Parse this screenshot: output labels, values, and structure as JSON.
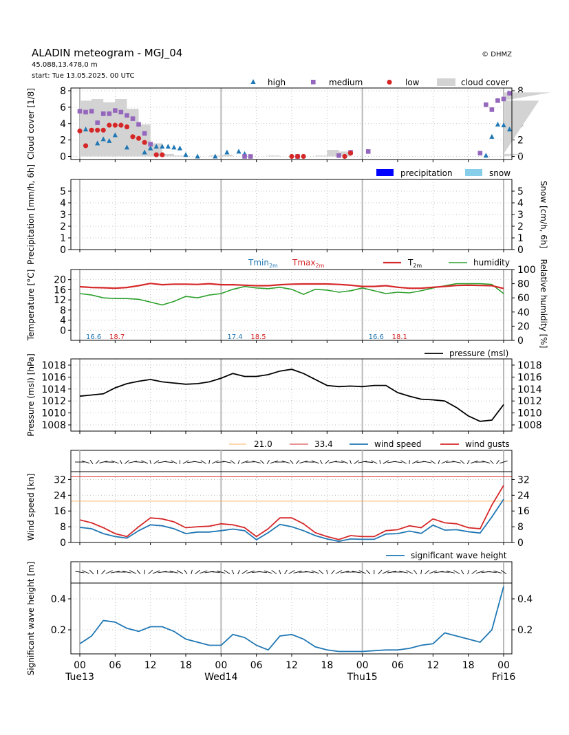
{
  "header": {
    "title": "ALADIN meteogram - MGJ_04",
    "coords": "45.088,13.478,0 m",
    "start": "start: Tue 13.05.2025. 00 UTC",
    "copyright": "© DHMZ"
  },
  "time_axis": {
    "hour_ticks": [
      "00",
      "06",
      "12",
      "18",
      "00",
      "06",
      "12",
      "18",
      "00",
      "06",
      "12",
      "18",
      "00"
    ],
    "day_labels": [
      "Tue13",
      "Wed14",
      "Thu15",
      "Fri16"
    ]
  },
  "chart_data": [
    {
      "type": "scatter",
      "ylabel": "Cloud cover [1/8]",
      "ylim": [
        0,
        8
      ],
      "yticks": [
        0,
        2,
        4,
        6,
        8
      ],
      "grid": true,
      "legend_placement": "top-right",
      "x_unit": "hours since start",
      "cloud_cover_area": {
        "name": "cloud cover",
        "color": "#d3d3d3",
        "x": [
          0,
          2,
          4,
          6,
          8,
          10,
          12,
          14,
          16,
          18,
          20,
          22,
          24,
          26,
          28,
          30,
          32,
          34,
          36,
          38,
          40,
          42,
          44,
          46,
          48,
          50,
          52,
          54,
          56,
          58,
          60,
          62,
          64,
          66,
          68,
          70,
          72,
          74,
          76,
          78,
          80
        ],
        "values": [
          6.8,
          7.0,
          6.6,
          7.0,
          5.8,
          3.9,
          1.6,
          0.3,
          0.1,
          0.0,
          0.0,
          0.1,
          0.2,
          0.0,
          0.0,
          0.0,
          0.1,
          0.0,
          0.0,
          0.0,
          0.1,
          0.8,
          0.6,
          0.0,
          0.0,
          0.0,
          0.0,
          0.0,
          0.0,
          0.0,
          0.0,
          0.0,
          0.0,
          0.0,
          0.0,
          0.0,
          0.0,
          0.0,
          0.3,
          6.8,
          7.8
        ]
      },
      "series": [
        {
          "name": "high",
          "marker": "triangle",
          "color": "#1f77b4",
          "x": [
            1,
            3,
            4,
            5,
            6,
            8,
            11,
            12,
            13,
            14,
            15,
            16,
            17,
            18,
            20,
            23,
            25,
            27,
            28,
            69,
            70,
            71,
            72,
            73
          ],
          "values": [
            3.3,
            1.6,
            2.1,
            1.9,
            2.6,
            1.1,
            0.5,
            1.0,
            1.2,
            1.2,
            1.2,
            1.1,
            1.0,
            0.2,
            0.0,
            0.0,
            0.5,
            0.6,
            0.3,
            0.1,
            2.4,
            3.9,
            3.8,
            3.3
          ]
        },
        {
          "name": "medium",
          "marker": "square",
          "color": "#9467bd",
          "x": [
            0,
            1,
            2,
            3,
            4,
            5,
            6,
            7,
            8,
            9,
            10,
            11,
            12,
            28,
            29,
            37,
            44,
            46,
            49,
            68,
            69,
            70,
            71,
            72,
            73
          ],
          "values": [
            5.5,
            5.4,
            5.5,
            4.1,
            5.2,
            5.2,
            5.6,
            5.4,
            5.0,
            4.6,
            3.9,
            2.8,
            1.5,
            0.0,
            0.0,
            0.0,
            0.1,
            0.5,
            0.6,
            0.4,
            6.3,
            5.7,
            6.8,
            7.0,
            7.7
          ]
        },
        {
          "name": "low",
          "marker": "circle",
          "color": "#d62728",
          "x": [
            0,
            1,
            2,
            3,
            4,
            5,
            6,
            7,
            8,
            9,
            10,
            11,
            13,
            14,
            36,
            37,
            38,
            45,
            46
          ],
          "values": [
            3.1,
            1.3,
            3.2,
            3.2,
            3.2,
            3.8,
            3.8,
            3.8,
            3.6,
            2.4,
            2.2,
            1.7,
            0.2,
            0.2,
            0.0,
            0.0,
            0.0,
            0.0,
            0.4
          ]
        }
      ],
      "legend": [
        "high",
        "medium",
        "low",
        "cloud cover"
      ]
    },
    {
      "type": "bar",
      "ylabel": "Precipitation [mm/h, 6h]",
      "y2label": "Snow [cm/h, 6h]",
      "ylim": [
        0,
        6
      ],
      "yticks": [
        0,
        1,
        2,
        3,
        4,
        5
      ],
      "grid": true,
      "legend_placement": "top-right",
      "series": [
        {
          "name": "precipitation",
          "color": "#0000ff",
          "values": []
        },
        {
          "name": "snow",
          "color": "#87ceeb",
          "values": []
        }
      ],
      "legend": [
        "precipitation",
        "snow"
      ]
    },
    {
      "type": "line",
      "ylabel": "Temperature [°C]",
      "y2label": "Relative humidity [%]",
      "ylim": [
        -4,
        24
      ],
      "yticks": [
        0,
        4,
        8,
        12,
        16,
        20
      ],
      "y2lim": [
        0,
        100
      ],
      "y2ticks": [
        0,
        20,
        40,
        60,
        80,
        100
      ],
      "grid": true,
      "legend_placement": "top-right",
      "legend_labels": {
        "tmin": "Tmin",
        "tmax": "Tmax",
        "t2m": "T",
        "humidity": "humidity",
        "sub": "2m"
      },
      "daily_extremes": [
        {
          "tmin": "16.6",
          "tmax": "18.7"
        },
        {
          "tmin": "17.4",
          "tmax": "18.5"
        },
        {
          "tmin": "16.6",
          "tmax": "18.1"
        }
      ],
      "series": [
        {
          "name": "T2m",
          "color": "#d62728",
          "x": [
            0,
            2,
            4,
            6,
            8,
            10,
            12,
            14,
            16,
            18,
            20,
            22,
            24,
            26,
            28,
            30,
            32,
            34,
            36,
            38,
            40,
            42,
            44,
            46,
            48,
            50,
            52,
            54,
            56,
            58,
            60,
            62,
            64,
            66,
            68,
            70,
            72
          ],
          "values": [
            17.2,
            16.9,
            16.8,
            16.6,
            16.9,
            17.6,
            18.5,
            18.0,
            18.2,
            18.2,
            18.1,
            18.4,
            18.0,
            18.0,
            17.8,
            17.6,
            17.6,
            18.0,
            18.2,
            18.3,
            18.3,
            18.3,
            18.1,
            17.8,
            17.3,
            17.3,
            17.6,
            17.0,
            16.6,
            16.6,
            17.0,
            17.3,
            17.7,
            17.8,
            17.7,
            17.6,
            16.5
          ]
        },
        {
          "name": "humidity",
          "color": "#2ca02c",
          "x": [
            0,
            2,
            4,
            6,
            8,
            10,
            12,
            14,
            16,
            18,
            20,
            22,
            24,
            26,
            28,
            30,
            32,
            34,
            36,
            38,
            40,
            42,
            44,
            46,
            48,
            50,
            52,
            54,
            56,
            58,
            60,
            62,
            64,
            66,
            68,
            70,
            72
          ],
          "values": [
            66,
            64,
            60,
            59,
            59,
            58,
            54,
            50,
            55,
            62,
            60,
            64,
            66,
            72,
            76,
            74,
            73,
            75,
            72,
            65,
            72,
            71,
            68,
            70,
            74,
            70,
            66,
            68,
            67,
            70,
            74,
            77,
            80,
            80,
            80,
            79,
            66
          ]
        }
      ],
      "legend": [
        "T2m",
        "humidity"
      ]
    },
    {
      "type": "line",
      "ylabel": "Pressure (msl) [hPa]",
      "ylim": [
        1007,
        1019
      ],
      "yticks": [
        1008,
        1010,
        1012,
        1014,
        1016,
        1018
      ],
      "grid": true,
      "legend_placement": "top-right",
      "series": [
        {
          "name": "pressure (msl)",
          "color": "#000000",
          "x": [
            0,
            2,
            4,
            6,
            8,
            10,
            12,
            14,
            16,
            18,
            20,
            22,
            24,
            26,
            28,
            30,
            32,
            34,
            36,
            38,
            40,
            42,
            44,
            46,
            48,
            50,
            52,
            54,
            56,
            58,
            60,
            62,
            64,
            66,
            68,
            70,
            72
          ],
          "values": [
            1012.8,
            1013.0,
            1013.2,
            1014.2,
            1014.9,
            1015.3,
            1015.6,
            1015.2,
            1015.0,
            1014.8,
            1014.9,
            1015.2,
            1015.8,
            1016.6,
            1016.1,
            1016.1,
            1016.4,
            1017.0,
            1017.3,
            1016.6,
            1015.6,
            1014.6,
            1014.4,
            1014.5,
            1014.4,
            1014.6,
            1014.6,
            1013.4,
            1012.8,
            1012.3,
            1012.2,
            1012.0,
            1010.9,
            1009.5,
            1008.6,
            1008.8,
            1011.4
          ]
        }
      ],
      "legend": [
        "pressure (msl)"
      ]
    },
    {
      "type": "line",
      "ylabel": "Wind speed [kn]",
      "ylim": [
        0,
        36
      ],
      "yticks": [
        0,
        8,
        16,
        24,
        32
      ],
      "grid": true,
      "legend_placement": "top-right",
      "thresholds": [
        {
          "label": "21.0",
          "value": 21.0,
          "color": "#ffb060"
        },
        {
          "label": "33.4",
          "value": 33.4,
          "color": "#d62728"
        }
      ],
      "series": [
        {
          "name": "wind speed",
          "color": "#1f77b4",
          "x": [
            0,
            2,
            4,
            6,
            8,
            10,
            12,
            14,
            16,
            18,
            20,
            22,
            24,
            26,
            28,
            30,
            32,
            34,
            36,
            38,
            40,
            42,
            44,
            46,
            48,
            50,
            52,
            54,
            56,
            58,
            60,
            62,
            64,
            66,
            68,
            70,
            72
          ],
          "values": [
            7.7,
            7.0,
            4.5,
            3.0,
            2.2,
            6.0,
            9.0,
            8.5,
            7.0,
            4.5,
            5.3,
            5.3,
            6.0,
            6.8,
            6.0,
            1.4,
            5.0,
            9.2,
            8.0,
            6.0,
            3.5,
            1.8,
            0.6,
            1.8,
            1.6,
            1.6,
            4.3,
            4.5,
            5.8,
            4.6,
            8.8,
            6.3,
            6.5,
            5.5,
            4.8,
            13.0,
            22.0
          ]
        },
        {
          "name": "wind gusts",
          "color": "#d62728",
          "x": [
            0,
            2,
            4,
            6,
            8,
            10,
            12,
            14,
            16,
            18,
            20,
            22,
            24,
            26,
            28,
            30,
            32,
            34,
            36,
            38,
            40,
            42,
            44,
            46,
            48,
            50,
            52,
            54,
            56,
            58,
            60,
            62,
            64,
            66,
            68,
            70,
            72
          ],
          "values": [
            11.5,
            10.0,
            7.5,
            4.5,
            3.0,
            8.0,
            12.5,
            12.0,
            10.5,
            7.5,
            8.0,
            8.3,
            9.5,
            9.0,
            7.5,
            3.0,
            7.0,
            12.5,
            12.5,
            9.5,
            5.0,
            3.0,
            1.5,
            3.5,
            3.0,
            3.0,
            6.0,
            6.5,
            8.5,
            7.5,
            12.0,
            10.0,
            9.5,
            7.5,
            7.0,
            19.0,
            29.0
          ]
        }
      ],
      "legend": [
        "21.0",
        "33.4",
        "wind speed",
        "wind gusts"
      ]
    },
    {
      "type": "line",
      "ylabel": "Significant wave height [m]",
      "ylim": [
        0.04,
        0.5
      ],
      "yticks": [
        0.2,
        0.4
      ],
      "grid": true,
      "legend_placement": "top-right",
      "series": [
        {
          "name": "significant wave height",
          "color": "#1f77b4",
          "x": [
            0,
            2,
            4,
            6,
            8,
            10,
            12,
            14,
            16,
            18,
            20,
            22,
            24,
            26,
            28,
            30,
            32,
            34,
            36,
            38,
            40,
            42,
            44,
            46,
            48,
            50,
            52,
            54,
            56,
            58,
            60,
            62,
            64,
            66,
            68,
            70,
            72
          ],
          "values": [
            0.11,
            0.16,
            0.26,
            0.25,
            0.21,
            0.19,
            0.22,
            0.22,
            0.19,
            0.14,
            0.12,
            0.1,
            0.1,
            0.17,
            0.15,
            0.1,
            0.07,
            0.16,
            0.17,
            0.14,
            0.09,
            0.07,
            0.06,
            0.06,
            0.06,
            0.065,
            0.07,
            0.07,
            0.08,
            0.1,
            0.11,
            0.18,
            0.16,
            0.14,
            0.12,
            0.2,
            0.48
          ]
        }
      ],
      "legend": [
        "significant wave height"
      ]
    }
  ]
}
